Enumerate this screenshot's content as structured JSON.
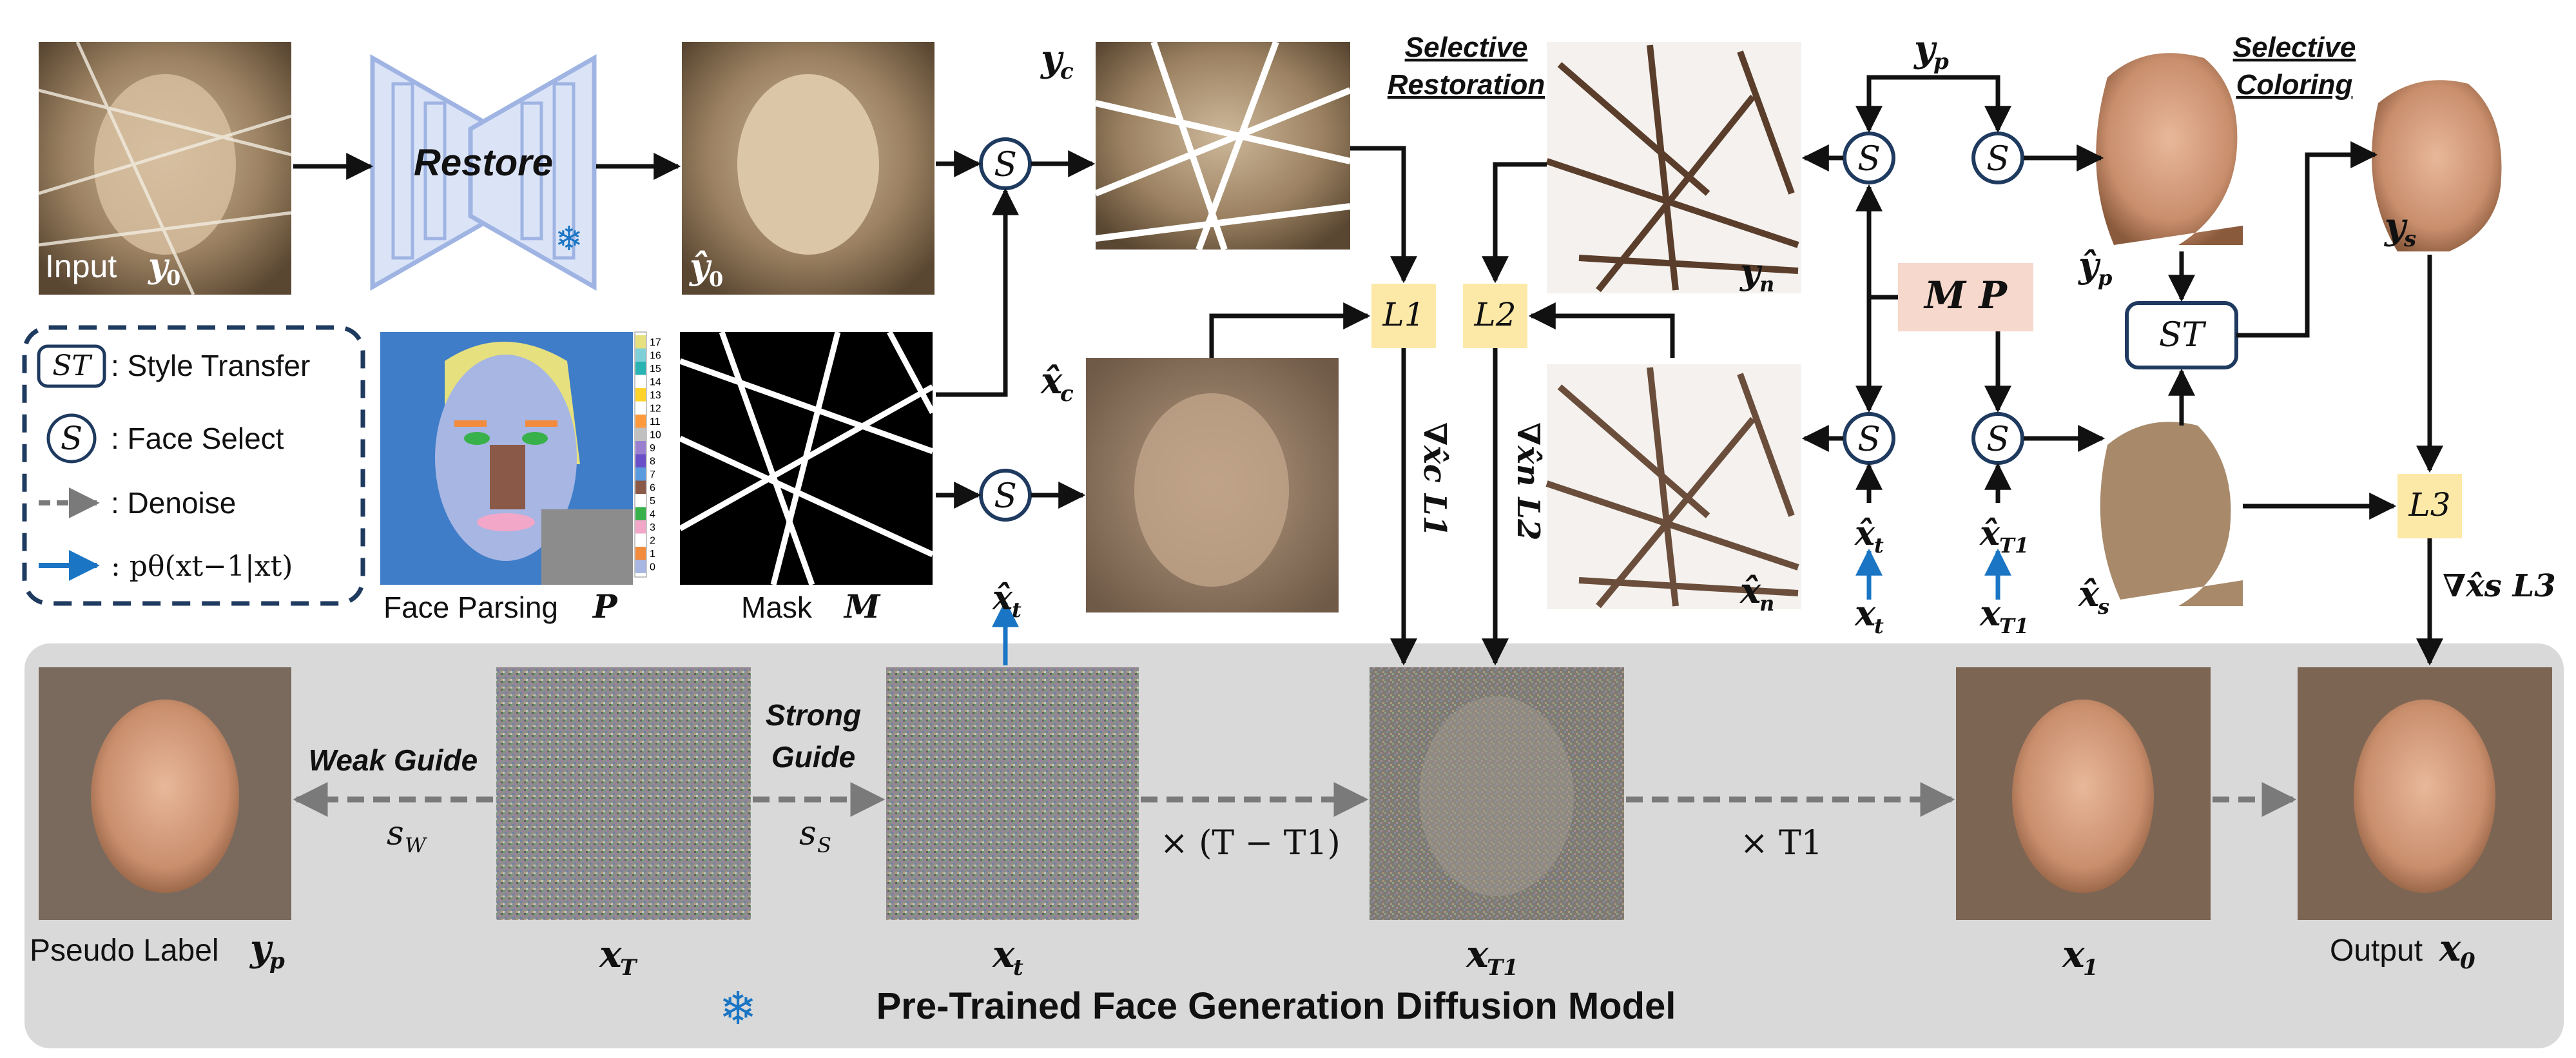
{
  "diagram": {
    "restore_label": "Restore",
    "selective_restoration": [
      "Selective",
      "Restoration"
    ],
    "selective_coloring": [
      "Selective",
      "Coloring"
    ],
    "input_label": "Input",
    "input_sym": "y",
    "input_sub": "0",
    "yhat0_sym": "ŷ",
    "yhat0_sub": "0",
    "face_parsing_label": "Face Parsing",
    "face_parsing_sym": "P",
    "mask_label": "Mask",
    "mask_sym": "M",
    "parsing_ticks": [
      "17",
      "16",
      "15",
      "14",
      "13",
      "12",
      "11",
      "10",
      "9",
      "8",
      "7",
      "6",
      "5",
      "4",
      "3",
      "2",
      "1",
      "0"
    ],
    "legend": {
      "st_symbol": "ST",
      "st_text": ": Style Transfer",
      "s_symbol": "S",
      "s_text": ": Face Select",
      "denoise_text": ": Denoise",
      "p_text": ": pθ(xt−1|xt)"
    },
    "symbols": {
      "yc": "y",
      "yc_sub": "c",
      "xc": "x̂",
      "xc_sub": "c",
      "yn": "y",
      "yn_sub": "n",
      "xn": "x̂",
      "xn_sub": "n",
      "yp_top": "y",
      "yp_top_sub": "p",
      "yp_hat": "ŷ",
      "yp_hat_sub": "p",
      "ys": "y",
      "ys_sub": "s",
      "xs": "x̂",
      "xs_sub": "s",
      "xt_hat_a": "x̂",
      "xt_hat_a_sub": "t",
      "xt_hat_b": "x̂",
      "xt_hat_b_sub": "t",
      "xt_b": "x",
      "xt_b_sub": "t",
      "xT1_hat": "x̂",
      "xT1_hat_sub": "T1",
      "xT1_b": "x",
      "xT1_b_sub": "T1",
      "MP": "M P",
      "L1": "L1",
      "L2": "L2",
      "L3": "L3",
      "grad1": "∇x̂c L1",
      "grad2": "∇x̂n L2",
      "grad3": "∇x̂s L3",
      "ST_box": "ST"
    },
    "bottom": {
      "title": "Pre-Trained Face Generation Diffusion Model",
      "pseudo_label": "Pseudo Label",
      "pseudo_sym": "y",
      "pseudo_sub": "p",
      "xT": "x",
      "xT_sub": "T",
      "xt": "x",
      "xt_sub": "t",
      "xT1": "x",
      "xT1_sub": "T1",
      "x1": "x",
      "x1_sub": "1",
      "output_label": "Output",
      "output_sym": "x",
      "output_sub": "0",
      "weak_guide": [
        "Weak Guide"
      ],
      "strong_guide": [
        "Strong",
        "Guide"
      ],
      "sw": "s",
      "sw_sub": "W",
      "ss": "s",
      "ss_sub": "S",
      "times_T_minus": "× (T − T1)",
      "times_T1": "× T1"
    }
  },
  "colors": {
    "restore_blue": "#9fb4e3",
    "node_stroke": "#1f3a5f",
    "loss_fill": "#fde9a7",
    "mp_fill": "#f6d8cc",
    "bottom_bg": "#d9d9d9",
    "blue_arrow": "#1a75c4"
  }
}
